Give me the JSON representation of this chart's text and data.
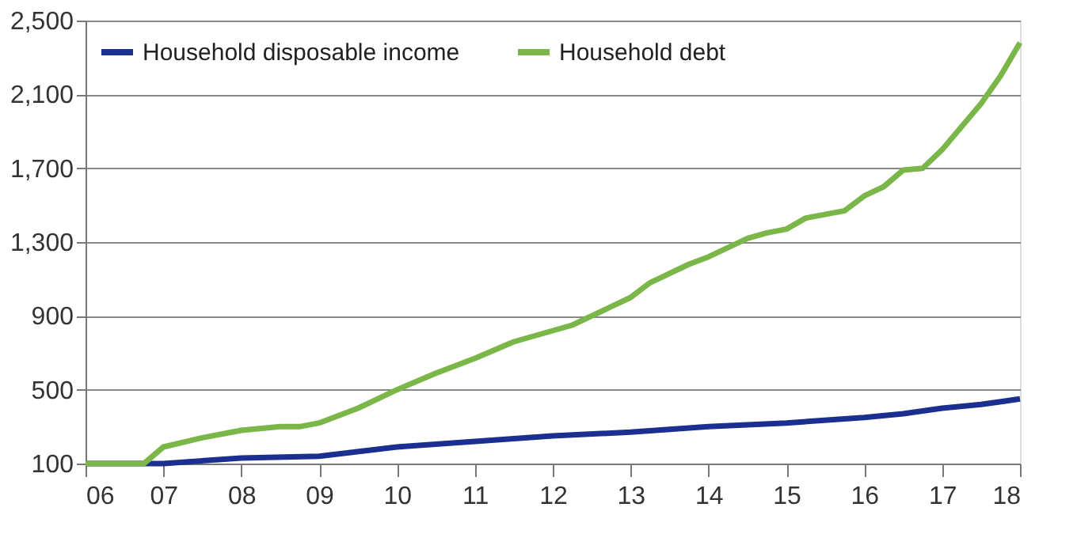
{
  "chart_data": {
    "type": "line",
    "xlim": [
      6,
      18
    ],
    "xticks": [
      {
        "value": 6,
        "label": "06"
      },
      {
        "value": 7,
        "label": "07"
      },
      {
        "value": 8,
        "label": "08"
      },
      {
        "value": 9,
        "label": "09"
      },
      {
        "value": 10,
        "label": "10"
      },
      {
        "value": 11,
        "label": "11"
      },
      {
        "value": 12,
        "label": "12"
      },
      {
        "value": 13,
        "label": "13"
      },
      {
        "value": 14,
        "label": "14"
      },
      {
        "value": 15,
        "label": "15"
      },
      {
        "value": 16,
        "label": "16"
      },
      {
        "value": 17,
        "label": "17"
      },
      {
        "value": 18,
        "label": "18"
      }
    ],
    "ylim": [
      100,
      2500
    ],
    "yticks": [
      100,
      500,
      900,
      {
        "value": 1300,
        "label": "1,300"
      },
      {
        "value": 1700,
        "label": "1,700"
      },
      {
        "value": 2100,
        "label": "2,100"
      },
      {
        "value": 2500,
        "label": "2,500"
      }
    ],
    "grid": "y",
    "legend": "top left",
    "marker": "none",
    "line_style": "solid",
    "series": [
      {
        "name": "Household disposable income",
        "color": "#1a2f8f",
        "x": [
          6,
          7,
          8,
          9,
          10,
          11,
          12,
          13,
          14,
          15,
          16,
          16.5,
          17,
          17.5,
          18
        ],
        "values": [
          100,
          100,
          130,
          140,
          190,
          220,
          250,
          270,
          300,
          320,
          350,
          370,
          400,
          420,
          450
        ]
      },
      {
        "name": "Household debt",
        "color": "#7ab648",
        "x": [
          6,
          6.75,
          7,
          7.5,
          8,
          8.5,
          8.75,
          9,
          9.5,
          10,
          10.5,
          11,
          11.5,
          12,
          12.25,
          12.75,
          13,
          13.25,
          13.75,
          14,
          14.5,
          14.75,
          15,
          15.25,
          15.75,
          16,
          16.25,
          16.5,
          16.75,
          17,
          17.5,
          17.75,
          18
        ],
        "values": [
          100,
          100,
          190,
          240,
          280,
          300,
          300,
          320,
          400,
          500,
          590,
          670,
          760,
          820,
          850,
          950,
          1000,
          1080,
          1180,
          1220,
          1320,
          1350,
          1370,
          1430,
          1470,
          1550,
          1600,
          1690,
          1700,
          1800,
          2050,
          2200,
          2380
        ]
      }
    ]
  }
}
